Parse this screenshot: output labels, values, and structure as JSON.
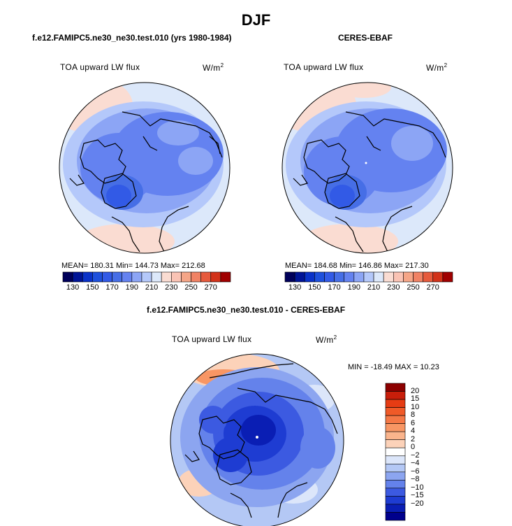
{
  "title": "DJF",
  "panels": [
    {
      "title": "f.e12.FAMIPC5.ne30_ne30.test.010 (yrs 1980-1984)",
      "field": "TOA upward LW flux",
      "units_base": "W/m",
      "units_exp": "2",
      "stats": "MEAN= 180.31   Min= 144.73   Max= 212.68"
    },
    {
      "title": "CERES-EBAF",
      "field": "TOA upward LW flux",
      "units_base": "W/m",
      "units_exp": "2",
      "stats": "MEAN= 184.68   Min= 146.86   Max= 217.30"
    },
    {
      "title": "f.e12.FAMIPC5.ne30_ne30.test.010 - CERES-EBAF",
      "field": "TOA upward LW flux",
      "units_base": "W/m",
      "units_exp": "2",
      "stats": "MIN = -18.49 MAX =  10.23"
    }
  ],
  "colorbar_top": {
    "labels": [
      "130",
      "150",
      "170",
      "190",
      "210",
      "230",
      "250",
      "270"
    ],
    "colors": [
      "#00005a",
      "#001496",
      "#0a32c8",
      "#1e50dc",
      "#325ae6",
      "#466ee6",
      "#6482f0",
      "#8ca5f5",
      "#b4c8fa",
      "#dce8fa",
      "#fadcd2",
      "#fac3b4",
      "#f5a587",
      "#f08264",
      "#e65a3c",
      "#d23219",
      "#a00000"
    ]
  },
  "colorbar_diff": {
    "labels": [
      "20",
      "15",
      "10",
      "8",
      "6",
      "4",
      "2",
      "0",
      "−2",
      "−4",
      "−6",
      "−8",
      "−10",
      "−15",
      "−20"
    ],
    "colors": [
      "#8c0000",
      "#c81e0a",
      "#e63c14",
      "#f05a28",
      "#f57846",
      "#f89664",
      "#fab48c",
      "#fcd2b9",
      "#ffffff",
      "#dce6fa",
      "#b4c8f5",
      "#8ca5f0",
      "#6482eb",
      "#3c5ae1",
      "#1e3cd2",
      "#0a1eb4",
      "#00008c"
    ]
  }
}
